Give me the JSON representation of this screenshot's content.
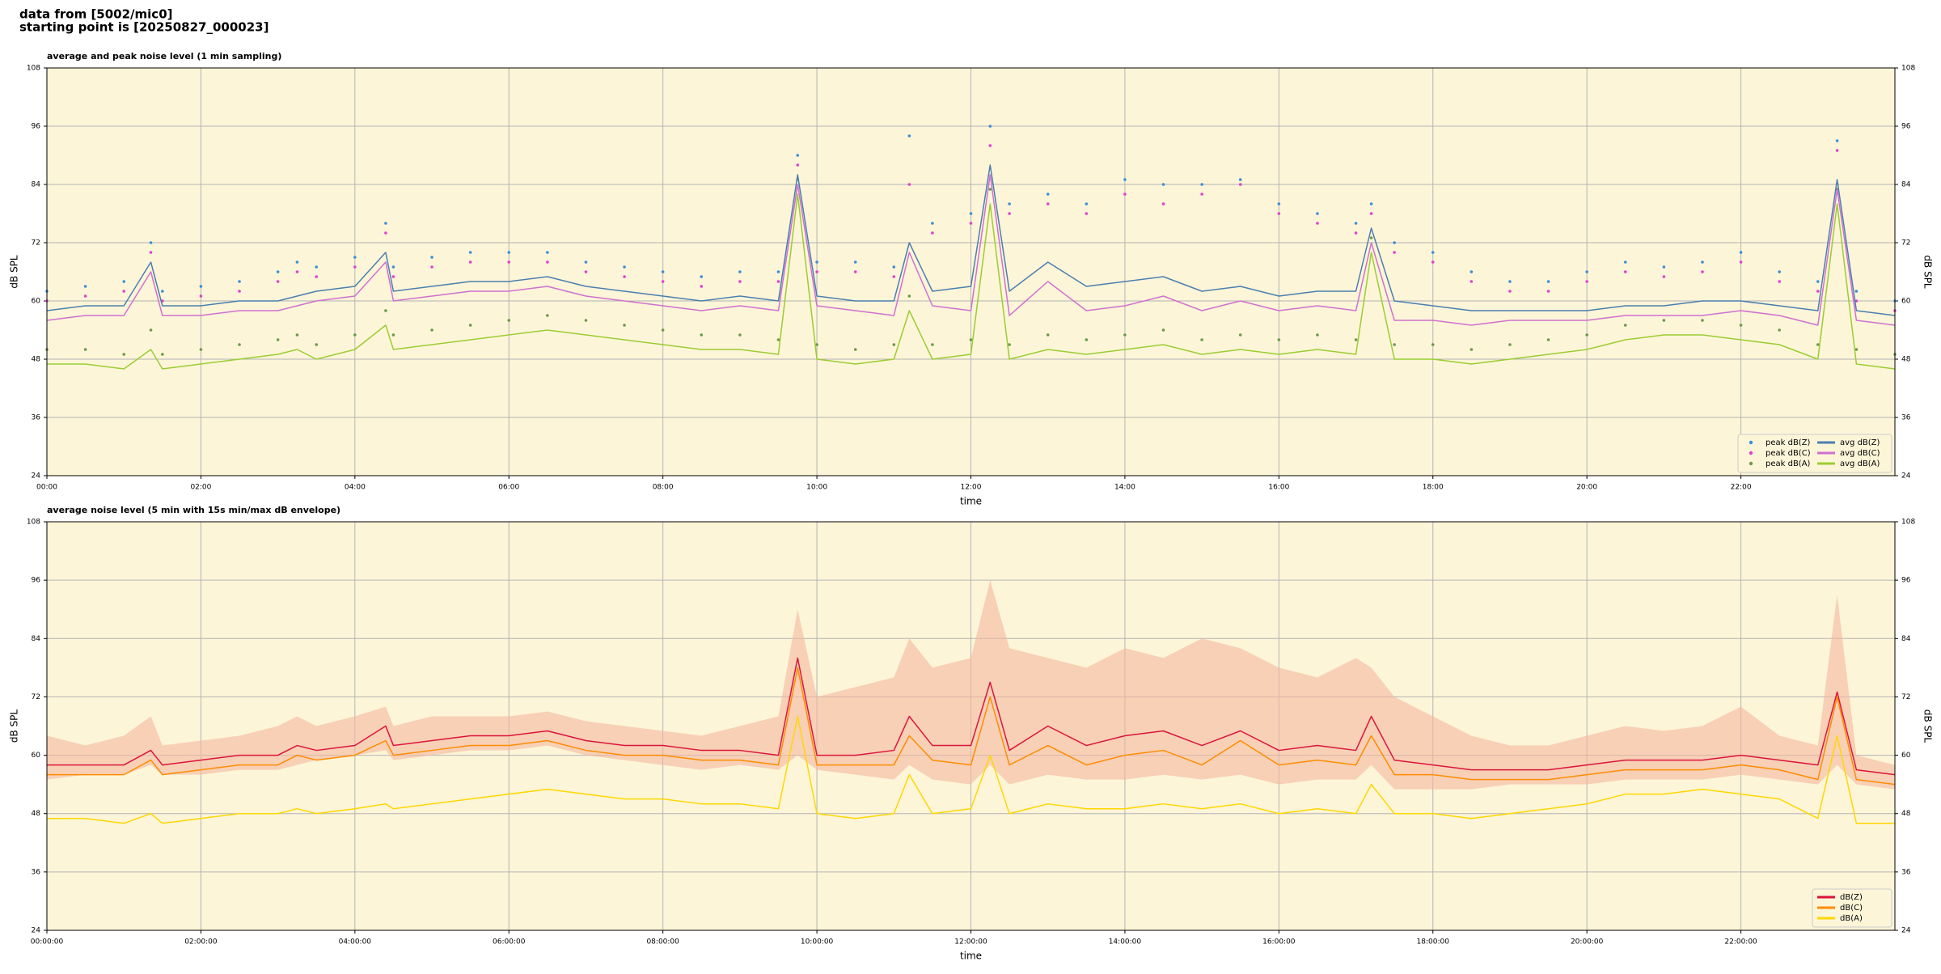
{
  "header": {
    "lines": [
      "data from [5002/mic0]",
      "starting point is [20250827_000023]"
    ]
  },
  "chart_data": [
    {
      "type": "line",
      "title": "average and peak noise level (1 min sampling)",
      "xlabel": "time",
      "ylabel": "dB SPL",
      "xlim": [
        0,
        24
      ],
      "ylim": [
        24,
        108
      ],
      "yticks": [
        24,
        36,
        48,
        60,
        72,
        84,
        96,
        108
      ],
      "xticks": [
        {
          "value": 0,
          "label": "00:00"
        },
        {
          "value": 2,
          "label": "02:00"
        },
        {
          "value": 4,
          "label": "04:00"
        },
        {
          "value": 6,
          "label": "06:00"
        },
        {
          "value": 8,
          "label": "08:00"
        },
        {
          "value": 10,
          "label": "10:00"
        },
        {
          "value": 12,
          "label": "12:00"
        },
        {
          "value": 14,
          "label": "14:00"
        },
        {
          "value": 16,
          "label": "16:00"
        },
        {
          "value": 18,
          "label": "18:00"
        },
        {
          "value": 20,
          "label": "20:00"
        },
        {
          "value": 22,
          "label": "22:00"
        }
      ],
      "grid": true,
      "legend": "lower right",
      "legend_columns": 2,
      "x": [
        0,
        0.5,
        1,
        1.35,
        1.5,
        2,
        2.5,
        3,
        3.25,
        3.5,
        4,
        4.4,
        4.5,
        5,
        5.5,
        6,
        6.5,
        7,
        7.5,
        8,
        8.5,
        9,
        9.5,
        9.75,
        10,
        10.5,
        11,
        11.2,
        11.5,
        12,
        12.25,
        12.5,
        13,
        13.5,
        14,
        14.5,
        15,
        15.5,
        16,
        16.5,
        17,
        17.2,
        17.5,
        18,
        18.5,
        19,
        19.5,
        20,
        20.5,
        21,
        21.5,
        22,
        22.5,
        23,
        23.25,
        23.5,
        24
      ],
      "series": [
        {
          "name": "peak dB(Z)",
          "type": "scatter",
          "color": "#3a8fd8",
          "values": [
            62,
            63,
            64,
            72,
            62,
            63,
            64,
            66,
            68,
            67,
            69,
            76,
            67,
            69,
            70,
            70,
            70,
            68,
            67,
            66,
            65,
            66,
            66,
            90,
            68,
            68,
            67,
            94,
            76,
            78,
            96,
            80,
            82,
            80,
            85,
            84,
            84,
            85,
            80,
            78,
            76,
            80,
            72,
            70,
            66,
            64,
            64,
            66,
            68,
            67,
            68,
            70,
            66,
            64,
            93,
            62,
            60
          ]
        },
        {
          "name": "peak dB(C)",
          "type": "scatter",
          "color": "#e040d0",
          "values": [
            60,
            61,
            62,
            70,
            60,
            61,
            62,
            64,
            66,
            65,
            67,
            74,
            65,
            67,
            68,
            68,
            68,
            66,
            65,
            64,
            63,
            64,
            64,
            88,
            66,
            66,
            65,
            84,
            74,
            76,
            92,
            78,
            80,
            78,
            82,
            80,
            82,
            84,
            78,
            76,
            74,
            78,
            70,
            68,
            64,
            62,
            62,
            64,
            66,
            65,
            66,
            68,
            64,
            62,
            91,
            60,
            58
          ]
        },
        {
          "name": "peak dB(A)",
          "type": "scatter",
          "color": "#6a9a4a",
          "values": [
            50,
            50,
            49,
            54,
            49,
            50,
            51,
            52,
            53,
            51,
            53,
            58,
            53,
            54,
            55,
            56,
            57,
            56,
            55,
            54,
            53,
            53,
            52,
            85,
            51,
            50,
            51,
            61,
            51,
            52,
            83,
            51,
            53,
            52,
            53,
            54,
            52,
            53,
            52,
            53,
            52,
            73,
            51,
            51,
            50,
            51,
            52,
            53,
            55,
            56,
            56,
            55,
            54,
            51,
            83,
            50,
            49
          ]
        },
        {
          "name": "avg dB(Z)",
          "type": "line",
          "color": "#4a7fb0",
          "values": [
            58,
            59,
            59,
            68,
            59,
            59,
            60,
            60,
            61,
            62,
            63,
            70,
            62,
            63,
            64,
            64,
            65,
            63,
            62,
            61,
            60,
            61,
            60,
            86,
            61,
            60,
            60,
            72,
            62,
            63,
            88,
            62,
            68,
            63,
            64,
            65,
            62,
            63,
            61,
            62,
            62,
            75,
            60,
            59,
            58,
            58,
            58,
            58,
            59,
            59,
            60,
            60,
            59,
            58,
            85,
            58,
            57
          ]
        },
        {
          "name": "avg dB(C)",
          "type": "line",
          "color": "#d070d0",
          "values": [
            56,
            57,
            57,
            66,
            57,
            57,
            58,
            58,
            59,
            60,
            61,
            68,
            60,
            61,
            62,
            62,
            63,
            61,
            60,
            59,
            58,
            59,
            58,
            84,
            59,
            58,
            57,
            70,
            59,
            58,
            86,
            57,
            64,
            58,
            59,
            61,
            58,
            60,
            58,
            59,
            58,
            72,
            56,
            56,
            55,
            56,
            56,
            56,
            57,
            57,
            57,
            58,
            57,
            55,
            83,
            56,
            55
          ]
        },
        {
          "name": "avg dB(A)",
          "type": "line",
          "color": "#9acd32",
          "values": [
            47,
            47,
            46,
            50,
            46,
            47,
            48,
            49,
            50,
            48,
            50,
            55,
            50,
            51,
            52,
            53,
            54,
            53,
            52,
            51,
            50,
            50,
            49,
            82,
            48,
            47,
            48,
            58,
            48,
            49,
            80,
            48,
            50,
            49,
            50,
            51,
            49,
            50,
            49,
            50,
            49,
            70,
            48,
            48,
            47,
            48,
            49,
            50,
            52,
            53,
            53,
            52,
            51,
            48,
            80,
            47,
            46
          ]
        }
      ]
    },
    {
      "type": "line",
      "title": "average noise level (5 min with 15s min/max dB envelope)",
      "xlabel": "time",
      "ylabel": "dB SPL",
      "xlim": [
        0,
        24
      ],
      "ylim": [
        24,
        108
      ],
      "yticks": [
        24,
        36,
        48,
        60,
        72,
        84,
        96,
        108
      ],
      "xticks": [
        {
          "value": 0,
          "label": "00:00:00"
        },
        {
          "value": 2,
          "label": "02:00:00"
        },
        {
          "value": 4,
          "label": "04:00:00"
        },
        {
          "value": 6,
          "label": "06:00:00"
        },
        {
          "value": 8,
          "label": "08:00:00"
        },
        {
          "value": 10,
          "label": "10:00:00"
        },
        {
          "value": 12,
          "label": "12:00:00"
        },
        {
          "value": 14,
          "label": "14:00:00"
        },
        {
          "value": 16,
          "label": "16:00:00"
        },
        {
          "value": 18,
          "label": "18:00:00"
        },
        {
          "value": 20,
          "label": "20:00:00"
        },
        {
          "value": 22,
          "label": "22:00:00"
        }
      ],
      "grid": true,
      "legend": "lower right",
      "legend_columns": 1,
      "x": [
        0,
        0.5,
        1,
        1.35,
        1.5,
        2,
        2.5,
        3,
        3.25,
        3.5,
        4,
        4.4,
        4.5,
        5,
        5.5,
        6,
        6.5,
        7,
        7.5,
        8,
        8.5,
        9,
        9.5,
        9.75,
        10,
        10.5,
        11,
        11.2,
        11.5,
        12,
        12.25,
        12.5,
        13,
        13.5,
        14,
        14.5,
        15,
        15.5,
        16,
        16.5,
        17,
        17.2,
        17.5,
        18,
        18.5,
        19,
        19.5,
        20,
        20.5,
        21,
        21.5,
        22,
        22.5,
        23,
        23.25,
        23.5,
        24
      ],
      "envelope": {
        "color": "#f4b8a0",
        "upper": [
          64,
          62,
          64,
          68,
          62,
          63,
          64,
          66,
          68,
          66,
          68,
          70,
          66,
          68,
          68,
          68,
          69,
          67,
          66,
          65,
          64,
          66,
          68,
          90,
          72,
          74,
          76,
          84,
          78,
          80,
          96,
          82,
          80,
          78,
          82,
          80,
          84,
          82,
          78,
          76,
          80,
          78,
          72,
          68,
          64,
          62,
          62,
          64,
          66,
          65,
          66,
          70,
          64,
          62,
          93,
          60,
          58
        ],
        "lower": [
          55,
          56,
          56,
          58,
          56,
          56,
          57,
          57,
          58,
          59,
          60,
          61,
          59,
          60,
          61,
          61,
          62,
          60,
          59,
          58,
          57,
          58,
          57,
          60,
          57,
          56,
          55,
          58,
          55,
          54,
          58,
          54,
          56,
          55,
          55,
          56,
          55,
          56,
          54,
          55,
          55,
          58,
          53,
          53,
          53,
          54,
          54,
          54,
          55,
          55,
          55,
          56,
          55,
          54,
          58,
          54,
          53
        ]
      },
      "series": [
        {
          "name": "dB(Z)",
          "type": "line",
          "color": "#dc143c",
          "values": [
            58,
            58,
            58,
            61,
            58,
            59,
            60,
            60,
            62,
            61,
            62,
            66,
            62,
            63,
            64,
            64,
            65,
            63,
            62,
            62,
            61,
            61,
            60,
            80,
            60,
            60,
            61,
            68,
            62,
            62,
            75,
            61,
            66,
            62,
            64,
            65,
            62,
            65,
            61,
            62,
            61,
            68,
            59,
            58,
            57,
            57,
            57,
            58,
            59,
            59,
            59,
            60,
            59,
            58,
            73,
            57,
            56
          ]
        },
        {
          "name": "dB(C)",
          "type": "line",
          "color": "#ff8c00",
          "values": [
            56,
            56,
            56,
            59,
            56,
            57,
            58,
            58,
            60,
            59,
            60,
            63,
            60,
            61,
            62,
            62,
            63,
            61,
            60,
            60,
            59,
            59,
            58,
            78,
            58,
            58,
            58,
            64,
            59,
            58,
            72,
            58,
            62,
            58,
            60,
            61,
            58,
            63,
            58,
            59,
            58,
            64,
            56,
            56,
            55,
            55,
            55,
            56,
            57,
            57,
            57,
            58,
            57,
            55,
            72,
            55,
            54
          ]
        },
        {
          "name": "dB(A)",
          "type": "line",
          "color": "#ffd700",
          "values": [
            47,
            47,
            46,
            48,
            46,
            47,
            48,
            48,
            49,
            48,
            49,
            50,
            49,
            50,
            51,
            52,
            53,
            52,
            51,
            51,
            50,
            50,
            49,
            68,
            48,
            47,
            48,
            56,
            48,
            49,
            60,
            48,
            50,
            49,
            49,
            50,
            49,
            50,
            48,
            49,
            48,
            54,
            48,
            48,
            47,
            48,
            49,
            50,
            52,
            52,
            53,
            52,
            51,
            47,
            64,
            46,
            46
          ]
        }
      ]
    }
  ]
}
